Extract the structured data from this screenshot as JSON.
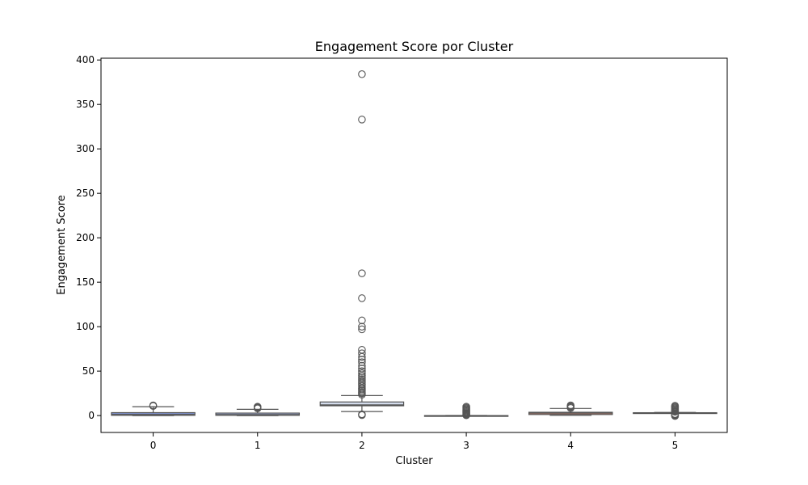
{
  "chart_data": {
    "type": "box",
    "title": "Engagement Score por Cluster",
    "xlabel": "Cluster",
    "ylabel": "Engagement Score",
    "categories": [
      "0",
      "1",
      "2",
      "3",
      "4",
      "5"
    ],
    "ylim": [
      -19,
      402
    ],
    "yticks": [
      0,
      50,
      100,
      150,
      200,
      250,
      300,
      350,
      400
    ],
    "grid": false,
    "legend": "none",
    "series": [
      {
        "category": "0",
        "whisker_low": 0.0,
        "q1": 0.3,
        "median": 1.2,
        "q3": 3.3,
        "whisker_high": 10.0,
        "outliers": [
          10.8,
          11.5,
          11.0
        ],
        "color": "#7b8fc9"
      },
      {
        "category": "1",
        "whisker_low": 0.0,
        "q1": 0.3,
        "median": 1.0,
        "q3": 2.8,
        "whisker_high": 7.0,
        "outliers": [
          8.0,
          8.8,
          9.5,
          10.0
        ],
        "color": "#aab9e6"
      },
      {
        "category": "2",
        "whisker_low": 4.5,
        "q1": 11.0,
        "median": 12.0,
        "q3": 15.3,
        "whisker_high": 22.5,
        "outliers": [
          0.5,
          1.5,
          23.5,
          25,
          26.5,
          28,
          29.5,
          31,
          33,
          35,
          37,
          39,
          41,
          43,
          45,
          47.5,
          50,
          53,
          56,
          60,
          63,
          66,
          70,
          74,
          97,
          100,
          107,
          132,
          160,
          333,
          384
        ],
        "color": "#d4dcec"
      },
      {
        "category": "3",
        "whisker_low": -0.3,
        "q1": -0.2,
        "median": -0.1,
        "q3": 0.0,
        "whisker_high": 0.1,
        "outliers": [
          0.3,
          0.8,
          1.5,
          2.2,
          3.0,
          4.0,
          5.0,
          6.0,
          7.0,
          8.0,
          9.0,
          10.0
        ],
        "color": "#ead6d2"
      },
      {
        "category": "4",
        "whisker_low": 0.3,
        "q1": 1.2,
        "median": 2.8,
        "q3": 3.7,
        "whisker_high": 8.0,
        "outliers": [
          8.5,
          9.5,
          10.5,
          11.5
        ],
        "color": "#e08c75"
      },
      {
        "category": "5",
        "whisker_low": 2.5,
        "q1": 2.9,
        "median": 3.0,
        "q3": 3.2,
        "whisker_high": 3.5,
        "outliers": [
          -0.5,
          0.2,
          1.0,
          1.8,
          4.3,
          5.0,
          6.0,
          7.0,
          8.0,
          9.0,
          10.0,
          11.0
        ],
        "color": "#c44e4e"
      }
    ]
  }
}
